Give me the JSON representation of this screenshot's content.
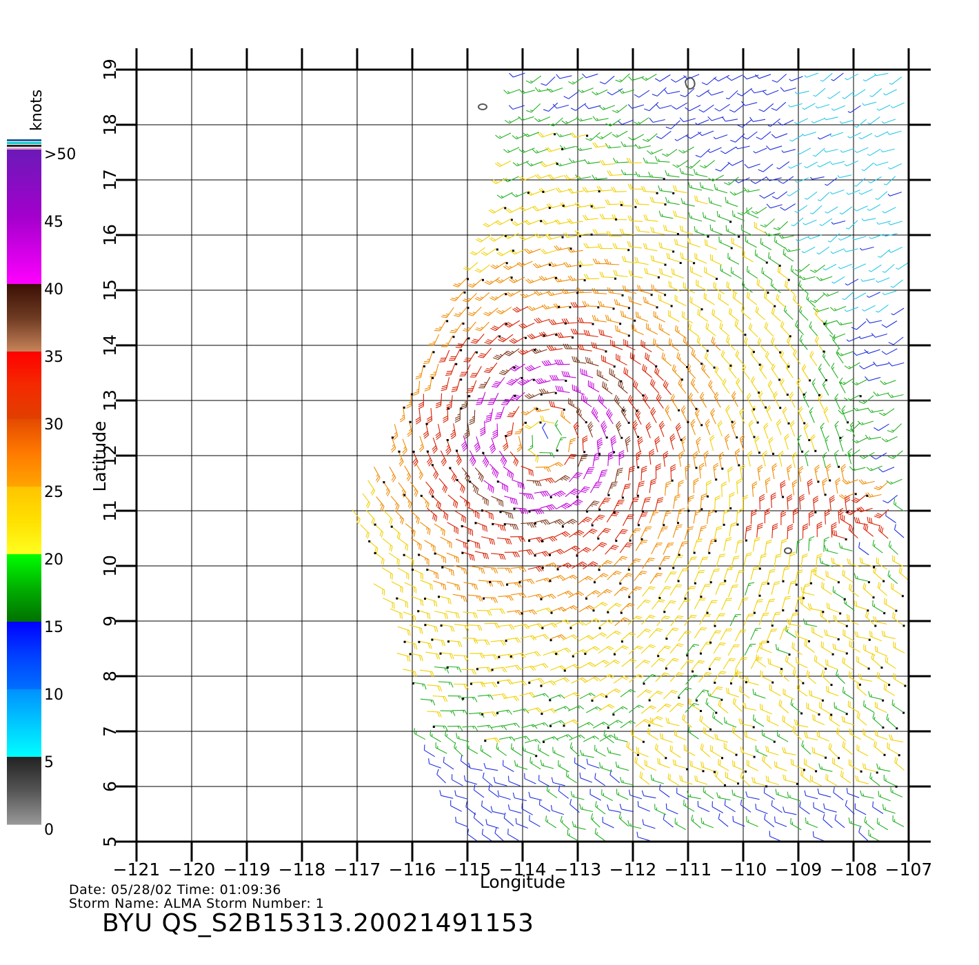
{
  "chart_data": {
    "type": "wind-barb-map",
    "xlabel": "Longitude",
    "ylabel": "Latitude",
    "x_ticks": [
      "-121",
      "-120",
      "-119",
      "-118",
      "-117",
      "-116",
      "-115",
      "-114",
      "-113",
      "-112",
      "-111",
      "-110",
      "-109",
      "-108",
      "-107"
    ],
    "y_ticks": [
      "5",
      "6",
      "7",
      "8",
      "9",
      "10",
      "11",
      "12",
      "13",
      "14",
      "15",
      "16",
      "17",
      "18",
      "19"
    ],
    "xlim": [
      -121,
      -107
    ],
    "ylim": [
      5,
      19
    ],
    "grid": true,
    "swath_corners_lonlat": [
      [
        -115,
        5
      ],
      [
        -116.1,
        7.6
      ],
      [
        -117.1,
        11
      ],
      [
        -114.5,
        16.3
      ],
      [
        -114,
        19.1
      ],
      [
        -107,
        19.1
      ],
      [
        -107,
        5
      ]
    ],
    "storm_center": {
      "lon": -113.6,
      "lat": 12.3
    },
    "colorbar": {
      "unit": "knots",
      "labels": [
        ">50",
        "45",
        "40",
        "35",
        "30",
        "25",
        "20",
        "15",
        "10",
        "5",
        "0"
      ],
      "bands": [
        {
          "from": 50,
          "to": 40,
          "colors": [
            "#6a1ab8",
            "#a300cc",
            "#ff00ff"
          ]
        },
        {
          "from": 40,
          "to": 35,
          "colors": [
            "#3b0f05",
            "#6e3b22",
            "#c8845a"
          ]
        },
        {
          "from": 35,
          "to": 30,
          "colors": [
            "#ff0000",
            "#f42a00",
            "#e04000"
          ]
        },
        {
          "from": 30,
          "to": 25,
          "colors": [
            "#e44a00",
            "#ff7a00",
            "#ffa500"
          ]
        },
        {
          "from": 25,
          "to": 20,
          "colors": [
            "#ffc400",
            "#ffe000",
            "#ffff20"
          ]
        },
        {
          "from": 20,
          "to": 15,
          "colors": [
            "#00ff00",
            "#00b000",
            "#007000"
          ]
        },
        {
          "from": 15,
          "to": 10,
          "colors": [
            "#0000ff",
            "#0040ff",
            "#0070ff"
          ]
        },
        {
          "from": 10,
          "to": 5,
          "colors": [
            "#0090ff",
            "#00c8ff",
            "#00ffff"
          ]
        },
        {
          "from": 5,
          "to": 0,
          "colors": [
            "#222222",
            "#555555",
            "#999999"
          ]
        }
      ]
    },
    "speed_colors": {
      "calm": "#444444",
      "light": "#28c8e8",
      "blue": "#1f2fe0",
      "green": "#22b022",
      "yellow": "#f2d000",
      "orange": "#f08a00",
      "red": "#d81e00",
      "brown": "#7a3418",
      "magenta": "#c000d8"
    }
  },
  "meta": {
    "date_line": "Date: 05/28/02   Time: 01:09:36",
    "storm_line": "Storm  Name:  ALMA    Storm  Number:  1",
    "title": "BYU  QS_S2B15313.20021491153"
  }
}
